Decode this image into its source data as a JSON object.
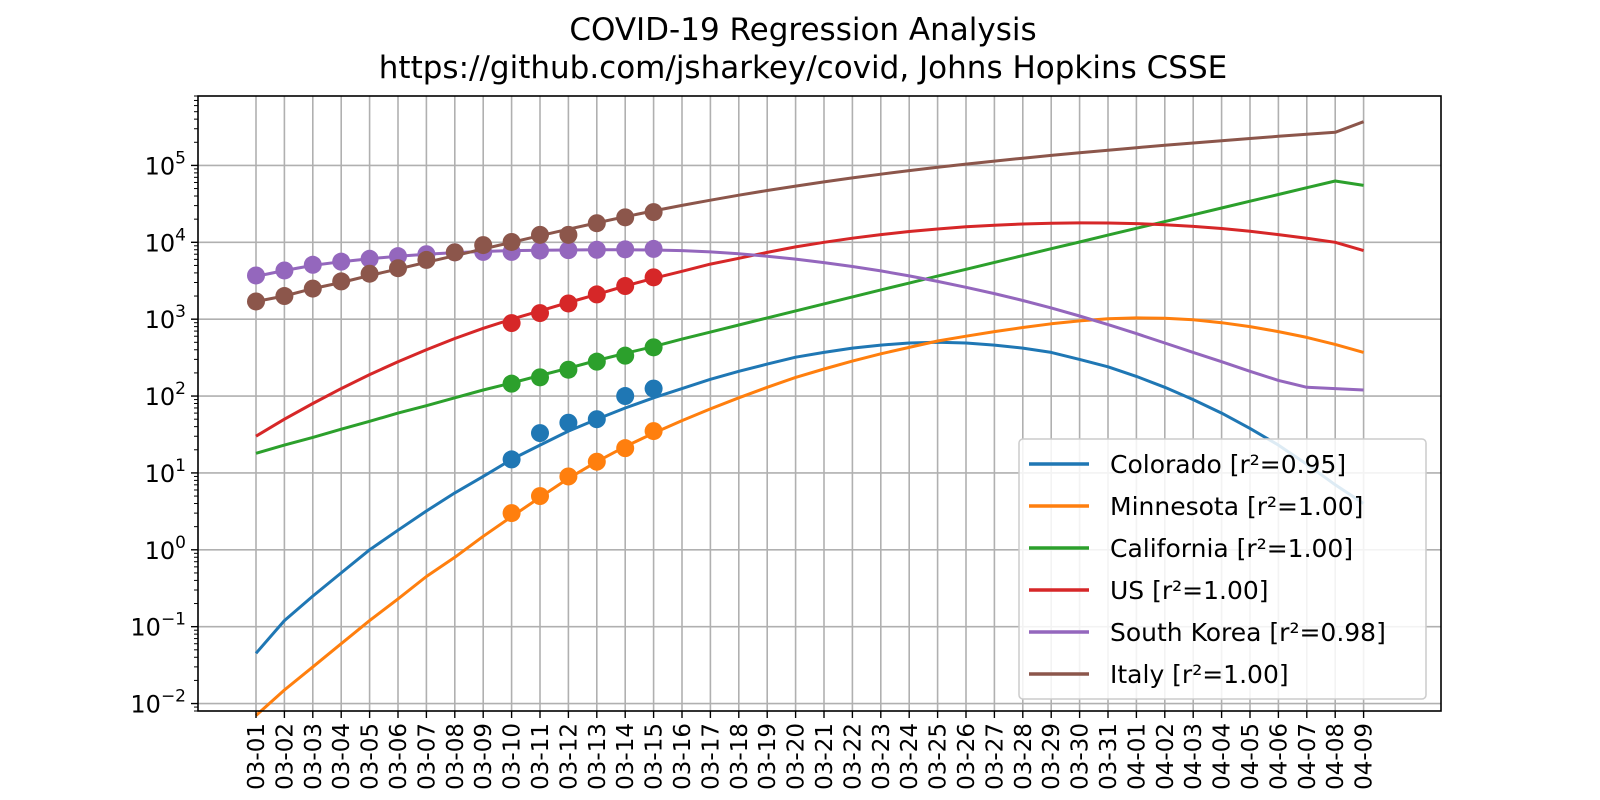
{
  "chart_data": {
    "type": "line",
    "title": "COVID-19 Regression Analysis",
    "subtitle": "https://github.com/jsharkey/covid, Johns Hopkins CSSE",
    "xlabel": "",
    "ylabel": "",
    "yscale": "log",
    "ylim": [
      0.008,
      800000
    ],
    "grid": true,
    "legend_position": "lower-right",
    "x": [
      "03-01",
      "03-02",
      "03-03",
      "03-04",
      "03-05",
      "03-06",
      "03-07",
      "03-08",
      "03-09",
      "03-10",
      "03-11",
      "03-12",
      "03-13",
      "03-14",
      "03-15",
      "03-16",
      "03-17",
      "03-18",
      "03-19",
      "03-20",
      "03-21",
      "03-22",
      "03-23",
      "03-24",
      "03-25",
      "03-26",
      "03-27",
      "03-28",
      "03-29",
      "03-30",
      "03-31",
      "04-01",
      "04-02",
      "04-03",
      "04-04",
      "04-05",
      "04-06",
      "04-07",
      "04-08",
      "04-09"
    ],
    "y_ticks": [
      {
        "value": 0.01,
        "base": "10",
        "exp": "−2"
      },
      {
        "value": 0.1,
        "base": "10",
        "exp": "−1"
      },
      {
        "value": 1,
        "base": "10",
        "exp": "0"
      },
      {
        "value": 10,
        "base": "10",
        "exp": "1"
      },
      {
        "value": 100,
        "base": "10",
        "exp": "2"
      },
      {
        "value": 1000,
        "base": "10",
        "exp": "3"
      },
      {
        "value": 10000,
        "base": "10",
        "exp": "4"
      },
      {
        "value": 100000,
        "base": "10",
        "exp": "5"
      }
    ],
    "series": [
      {
        "name": "Colorado [r²=0.95]",
        "color": "#1f77b4",
        "fit": [
          0.045,
          0.12,
          0.25,
          0.5,
          1.0,
          1.8,
          3.2,
          5.5,
          9.0,
          15,
          23,
          35,
          50,
          70,
          95,
          125,
          165,
          210,
          260,
          320,
          370,
          420,
          460,
          490,
          500,
          490,
          460,
          420,
          370,
          300,
          240,
          180,
          130,
          90,
          60,
          38,
          23,
          13,
          7,
          4
        ],
        "observed": [
          [
            9,
            15
          ],
          [
            10,
            33
          ],
          [
            11,
            45
          ],
          [
            12,
            50
          ],
          [
            13,
            100
          ],
          [
            14,
            125
          ]
        ]
      },
      {
        "name": "Minnesota [r²=1.00]",
        "color": "#ff7f0e",
        "fit": [
          0.007,
          0.015,
          0.03,
          0.06,
          0.12,
          0.23,
          0.45,
          0.8,
          1.5,
          2.7,
          4.8,
          8.5,
          14,
          22,
          33,
          48,
          68,
          95,
          130,
          175,
          225,
          285,
          355,
          430,
          520,
          600,
          690,
          780,
          870,
          950,
          1010,
          1040,
          1030,
          980,
          900,
          800,
          690,
          580,
          470,
          370
        ],
        "observed": [
          [
            9,
            3
          ],
          [
            10,
            5
          ],
          [
            11,
            9
          ],
          [
            12,
            14
          ],
          [
            13,
            21
          ],
          [
            14,
            35
          ]
        ]
      },
      {
        "name": "California [r²=1.00]",
        "color": "#2ca02c",
        "fit": [
          18,
          23,
          29,
          37,
          47,
          60,
          75,
          95,
          120,
          148,
          185,
          230,
          290,
          360,
          440,
          550,
          680,
          840,
          1040,
          1280,
          1580,
          1950,
          2400,
          2950,
          3630,
          4460,
          5480,
          6720,
          8250,
          10100,
          12400,
          15200,
          18600,
          22800,
          27900,
          34200,
          41900,
          51300,
          62800,
          55000
        ],
        "observed": [
          [
            9,
            145
          ],
          [
            10,
            175
          ],
          [
            11,
            220
          ],
          [
            12,
            280
          ],
          [
            13,
            335
          ],
          [
            14,
            430
          ]
        ]
      },
      {
        "name": "US [r²=1.00]",
        "color": "#d62728",
        "fit": [
          30,
          50,
          80,
          125,
          190,
          280,
          400,
          560,
          760,
          1000,
          1280,
          1650,
          2100,
          2700,
          3400,
          4200,
          5200,
          6200,
          7400,
          8700,
          10000,
          11300,
          12600,
          13800,
          14900,
          15900,
          16700,
          17300,
          17700,
          17900,
          17800,
          17500,
          16900,
          16100,
          15100,
          13900,
          12600,
          11300,
          10000,
          7800
        ],
        "observed": [
          [
            9,
            890
          ],
          [
            10,
            1200
          ],
          [
            11,
            1600
          ],
          [
            12,
            2100
          ],
          [
            13,
            2700
          ],
          [
            14,
            3500
          ]
        ]
      },
      {
        "name": "South Korea [r²=0.98]",
        "color": "#9467bd",
        "fit": [
          3600,
          4300,
          5000,
          5600,
          6100,
          6600,
          7000,
          7350,
          7600,
          7800,
          7900,
          7950,
          7980,
          8000,
          7950,
          7800,
          7500,
          7100,
          6600,
          6050,
          5450,
          4850,
          4250,
          3650,
          3100,
          2600,
          2150,
          1750,
          1400,
          1100,
          850,
          650,
          490,
          370,
          280,
          210,
          160,
          130,
          125,
          120
        ],
        "observed": [
          [
            0,
            3700
          ],
          [
            1,
            4300
          ],
          [
            2,
            5100
          ],
          [
            3,
            5600
          ],
          [
            4,
            6100
          ],
          [
            5,
            6600
          ],
          [
            6,
            7000
          ],
          [
            7,
            7400
          ],
          [
            8,
            7500
          ],
          [
            9,
            7500
          ],
          [
            10,
            7800
          ],
          [
            11,
            7900
          ],
          [
            12,
            8000
          ],
          [
            13,
            8100
          ],
          [
            14,
            8200
          ]
        ]
      },
      {
        "name": "Italy [r²=1.00]",
        "color": "#8c564b",
        "fit": [
          1700,
          2000,
          2500,
          3000,
          3700,
          4500,
          5500,
          6700,
          8200,
          10000,
          12200,
          14800,
          17900,
          21500,
          25600,
          30200,
          35300,
          41000,
          47200,
          53900,
          61100,
          68800,
          77000,
          85600,
          94600,
          104000,
          114000,
          124000,
          135000,
          146000,
          158000,
          170000,
          183000,
          196000,
          210000,
          224000,
          239000,
          254000,
          270000,
          370000
        ],
        "observed": [
          [
            0,
            1700
          ],
          [
            1,
            2000
          ],
          [
            2,
            2500
          ],
          [
            3,
            3100
          ],
          [
            4,
            3900
          ],
          [
            5,
            4600
          ],
          [
            6,
            5900
          ],
          [
            7,
            7400
          ],
          [
            8,
            9200
          ],
          [
            9,
            10100
          ],
          [
            10,
            12500
          ],
          [
            11,
            12500
          ],
          [
            12,
            17700
          ],
          [
            13,
            21100
          ],
          [
            14,
            24700
          ]
        ]
      }
    ]
  }
}
